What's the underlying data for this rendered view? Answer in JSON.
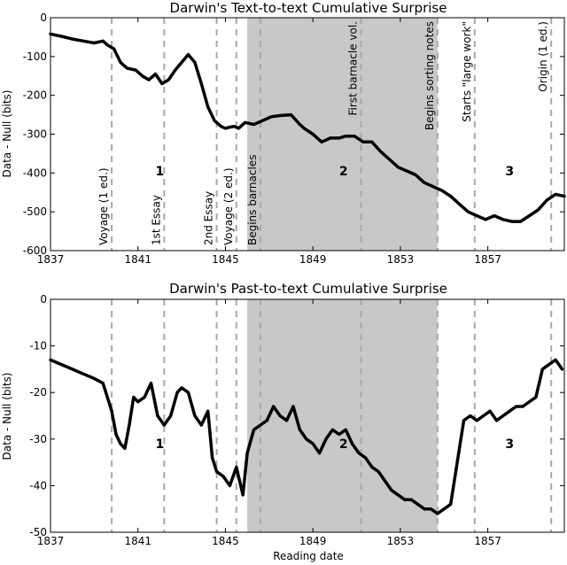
{
  "chart_data": [
    {
      "type": "line",
      "title": "Darwin's Text-to-text Cumulative Surprise",
      "ylabel": "Data - Null (bits)",
      "xlabel": "",
      "xlim": [
        1837,
        1860.5
      ],
      "ylim": [
        -600,
        0
      ],
      "xticks": [
        1837,
        1841,
        1845,
        1849,
        1853,
        1857
      ],
      "yticks": [
        -600,
        -500,
        -400,
        -300,
        -200,
        -100,
        0
      ],
      "shaded_range": [
        1846.0,
        1854.7
      ],
      "events": [
        {
          "x": 1839.8,
          "label": "Voyage (1 ed.)",
          "position": "bottom"
        },
        {
          "x": 1842.2,
          "label": "1st Essay",
          "position": "bottom"
        },
        {
          "x": 1844.6,
          "label": "2nd Essay",
          "position": "bottom"
        },
        {
          "x": 1845.5,
          "label": "Voyage (2 ed.)",
          "position": "bottom"
        },
        {
          "x": 1846.6,
          "label": "Begins barnacles",
          "position": "bottom"
        },
        {
          "x": 1851.2,
          "label": "First barnacle vol.",
          "position": "top"
        },
        {
          "x": 1854.7,
          "label": "Begins sorting notes",
          "position": "top"
        },
        {
          "x": 1856.4,
          "label": "Starts \"large work\"",
          "position": "top"
        },
        {
          "x": 1859.9,
          "label": "Origin (1 ed.)",
          "position": "top"
        }
      ],
      "periods": [
        {
          "label": "1",
          "x": 1842.0,
          "y": -395
        },
        {
          "label": "2",
          "x": 1850.4,
          "y": -395
        },
        {
          "label": "3",
          "x": 1858.0,
          "y": -395
        }
      ],
      "x": [
        1837.0,
        1837.5,
        1838.0,
        1838.5,
        1839.0,
        1839.4,
        1839.6,
        1839.9,
        1840.2,
        1840.5,
        1840.9,
        1841.2,
        1841.5,
        1841.8,
        1842.1,
        1842.4,
        1842.7,
        1843.0,
        1843.3,
        1843.6,
        1843.9,
        1844.2,
        1844.5,
        1844.8,
        1845.0,
        1845.2,
        1845.4,
        1845.6,
        1845.9,
        1846.3,
        1846.7,
        1847.1,
        1847.5,
        1848.0,
        1848.4,
        1848.6,
        1849.0,
        1849.4,
        1849.8,
        1850.2,
        1850.5,
        1850.9,
        1851.3,
        1851.7,
        1852.1,
        1852.5,
        1852.9,
        1853.3,
        1853.7,
        1854.1,
        1854.5,
        1854.9,
        1855.3,
        1855.7,
        1856.1,
        1856.5,
        1856.9,
        1857.3,
        1857.7,
        1858.1,
        1858.5,
        1858.9,
        1859.3,
        1859.7,
        1860.1,
        1860.5
      ],
      "y": [
        -42,
        -48,
        -55,
        -60,
        -65,
        -60,
        -70,
        -80,
        -115,
        -130,
        -135,
        -150,
        -160,
        -145,
        -170,
        -160,
        -135,
        -115,
        -95,
        -115,
        -170,
        -230,
        -265,
        -280,
        -285,
        -282,
        -280,
        -285,
        -270,
        -275,
        -265,
        -255,
        -252,
        -250,
        -275,
        -285,
        -300,
        -320,
        -310,
        -310,
        -305,
        -305,
        -320,
        -320,
        -345,
        -365,
        -385,
        -395,
        -405,
        -425,
        -435,
        -445,
        -460,
        -480,
        -500,
        -510,
        -520,
        -510,
        -520,
        -525,
        -525,
        -510,
        -495,
        -470,
        -455,
        -460
      ]
    },
    {
      "type": "line",
      "title": "Darwin's Past-to-text Cumulative Surprise",
      "ylabel": "Data - Null (bits)",
      "xlabel": "Reading date",
      "xlim": [
        1837,
        1860.5
      ],
      "ylim": [
        -50,
        0
      ],
      "xticks": [
        1837,
        1841,
        1845,
        1849,
        1853,
        1857
      ],
      "yticks": [
        -50,
        -40,
        -30,
        -20,
        -10,
        0
      ],
      "shaded_range": [
        1846.0,
        1854.7
      ],
      "event_lines": [
        1839.8,
        1842.2,
        1844.6,
        1845.5,
        1846.6,
        1851.2,
        1854.7,
        1856.4,
        1859.9
      ],
      "periods": [
        {
          "label": "1",
          "x": 1842.0,
          "y": -31
        },
        {
          "label": "2",
          "x": 1850.4,
          "y": -31
        },
        {
          "label": "3",
          "x": 1858.0,
          "y": -31
        }
      ],
      "x": [
        1837.0,
        1837.5,
        1838.0,
        1838.5,
        1839.0,
        1839.4,
        1839.6,
        1839.8,
        1840.0,
        1840.2,
        1840.4,
        1840.6,
        1840.8,
        1841.0,
        1841.3,
        1841.6,
        1841.9,
        1842.2,
        1842.5,
        1842.8,
        1843.0,
        1843.3,
        1843.6,
        1843.9,
        1844.2,
        1844.4,
        1844.6,
        1844.9,
        1845.2,
        1845.5,
        1845.8,
        1846.0,
        1846.3,
        1846.6,
        1846.9,
        1847.2,
        1847.5,
        1847.8,
        1848.1,
        1848.4,
        1848.7,
        1849.0,
        1849.3,
        1849.6,
        1849.9,
        1850.2,
        1850.5,
        1850.8,
        1851.1,
        1851.4,
        1851.7,
        1852.0,
        1852.3,
        1852.6,
        1852.9,
        1853.2,
        1853.5,
        1853.8,
        1854.1,
        1854.4,
        1854.7,
        1855.0,
        1855.3,
        1855.6,
        1855.9,
        1856.2,
        1856.5,
        1856.8,
        1857.1,
        1857.4,
        1857.7,
        1858.0,
        1858.3,
        1858.6,
        1858.9,
        1859.2,
        1859.5,
        1859.8,
        1860.1,
        1860.4
      ],
      "y": [
        -13,
        -14,
        -15,
        -16,
        -17,
        -18,
        -21,
        -24,
        -29,
        -31,
        -32,
        -27,
        -21,
        -22,
        -21,
        -18,
        -25,
        -27,
        -25,
        -20,
        -19,
        -20,
        -25,
        -27,
        -24,
        -34,
        -37,
        -38,
        -40,
        -36,
        -42,
        -33,
        -28,
        -27,
        -26,
        -23,
        -25,
        -26,
        -23,
        -28,
        -30,
        -31,
        -33,
        -30,
        -28,
        -29,
        -28,
        -31,
        -33,
        -34,
        -36,
        -37,
        -39,
        -41,
        -42,
        -43,
        -43,
        -44,
        -45,
        -45,
        -46,
        -45,
        -44,
        -35,
        -26,
        -25,
        -26,
        -25,
        -24,
        -26,
        -25,
        -24,
        -23,
        -23,
        -22,
        -21,
        -15,
        -14,
        -13,
        -15
      ]
    }
  ]
}
